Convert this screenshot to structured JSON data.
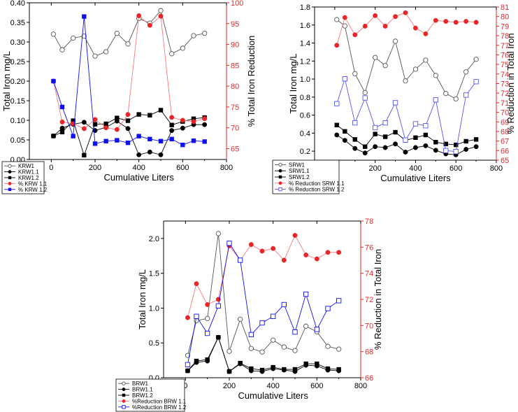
{
  "chart_data": [
    {
      "type": "line",
      "id": "krw",
      "xlabel": "Cumulative Liters",
      "ylabel": "Total Iron mg/L",
      "y2label": "% Total Iron Reduction",
      "xlim": [
        -100,
        800
      ],
      "ylim": [
        0,
        0.4
      ],
      "y2lim": [
        62.4,
        100
      ],
      "xticks": [
        0,
        200,
        400,
        600,
        800
      ],
      "yticks": [
        "0.00",
        "0.05",
        "0.10",
        "0.15",
        "0.20",
        "0.25",
        "0.30",
        "0.35",
        "0.40"
      ],
      "y2ticks": [
        65,
        70,
        75,
        80,
        85,
        90,
        95,
        100
      ],
      "grid": false,
      "legend_position": "bottom-left",
      "x": [
        10,
        50,
        100,
        150,
        200,
        250,
        300,
        350,
        400,
        450,
        500,
        550,
        600,
        650,
        700
      ],
      "series": [
        {
          "name": "KRW1",
          "axis": "left",
          "marker": "open-circle",
          "color": "#555555",
          "values": [
            0.32,
            0.28,
            0.31,
            0.315,
            0.264,
            0.275,
            0.322,
            0.295,
            0.36,
            0.348,
            0.38,
            0.27,
            0.284,
            0.316,
            0.322
          ]
        },
        {
          "name": "KRW1.1",
          "axis": "left",
          "marker": "filled-circle",
          "color": "#000000",
          "values": [
            0.06,
            0.08,
            0.09,
            0.095,
            0.074,
            0.082,
            0.098,
            0.079,
            0.012,
            0.019,
            0.012,
            0.074,
            0.08,
            0.089,
            0.089
          ]
        },
        {
          "name": "KRW1.2",
          "axis": "left",
          "marker": "filled-square",
          "color": "#000000",
          "values": [
            0.06,
            0.07,
            0.099,
            0.011,
            0.09,
            0.091,
            0.106,
            0.099,
            0.115,
            0.113,
            0.126,
            0.088,
            0.097,
            0.104,
            0.107
          ]
        },
        {
          "name": "% KRW 1.1",
          "axis": "right",
          "marker": "filled-circle",
          "color": "#e8262a",
          "values": [
            81.2,
            71.4,
            71.0,
            69.8,
            72.0,
            70.0,
            69.6,
            73.2,
            96.9,
            94.6,
            96.8,
            72.5,
            71.8,
            71.5,
            72.2
          ]
        },
        {
          "name": "% KRW 1.2",
          "axis": "right",
          "marker": "filled-square",
          "color": "#1010ee",
          "values": [
            81.2,
            75.0,
            68.0,
            96.7,
            66.2,
            66.8,
            67.0,
            66.4,
            68.0,
            67.3,
            66.8,
            67.3,
            65.9,
            66.9,
            66.7
          ]
        }
      ]
    },
    {
      "type": "line",
      "id": "srw",
      "xlabel": "Cumulative Liters",
      "ylabel": "Total Iron mg/L",
      "y2label": "% Reduction in Total Iron",
      "xlim": [
        -100,
        800
      ],
      "ylim": [
        0.1,
        1.8
      ],
      "y2lim": [
        65,
        81
      ],
      "xticks": [
        0,
        200,
        400,
        600,
        800
      ],
      "yticks": [
        "0.2",
        "0.4",
        "0.6",
        "0.8",
        "1.0",
        "1.2",
        "1.4",
        "1.6",
        "1.8"
      ],
      "y2ticks": [
        65,
        66,
        67,
        68,
        69,
        70,
        71,
        72,
        73,
        74,
        75,
        76,
        77,
        78,
        79,
        80,
        81
      ],
      "grid": false,
      "legend_position": "bottom-left",
      "x": [
        10,
        50,
        100,
        150,
        200,
        250,
        300,
        350,
        400,
        450,
        500,
        550,
        600,
        650,
        700
      ],
      "series": [
        {
          "name": "SRW1",
          "axis": "left",
          "marker": "open-circle",
          "color": "#555555",
          "values": [
            1.66,
            1.59,
            1.06,
            0.85,
            1.24,
            1.15,
            1.42,
            0.98,
            1.11,
            1.21,
            1.04,
            0.84,
            0.78,
            1.08,
            1.22
          ]
        },
        {
          "name": "SRW1.1",
          "axis": "left",
          "marker": "filled-circle",
          "color": "#000000",
          "values": [
            0.38,
            0.32,
            0.23,
            0.18,
            0.25,
            0.24,
            0.28,
            0.19,
            0.24,
            0.26,
            0.21,
            0.17,
            0.16,
            0.22,
            0.25
          ]
        },
        {
          "name": "SRW1.2",
          "axis": "left",
          "marker": "filled-square",
          "color": "#000000",
          "values": [
            0.49,
            0.42,
            0.33,
            0.25,
            0.39,
            0.36,
            0.41,
            0.32,
            0.35,
            0.38,
            0.3,
            0.28,
            0.27,
            0.31,
            0.33
          ]
        },
        {
          "name": "% Reduction SRW 1.1",
          "axis": "right",
          "marker": "filled-circle",
          "color": "#e8262a",
          "values": [
            77.0,
            79.9,
            78.1,
            79.0,
            80.1,
            79.0,
            80.0,
            80.4,
            78.8,
            78.2,
            79.6,
            79.5,
            79.4,
            79.5,
            79.4
          ]
        },
        {
          "name": "% Reduction SRW 1.2",
          "axis": "right",
          "marker": "open-square",
          "color": "#5555ee",
          "values": [
            70.9,
            73.5,
            68.9,
            71.5,
            68.4,
            68.9,
            71.0,
            67.1,
            68.8,
            68.6,
            71.3,
            66.0,
            65.9,
            71.8,
            73.2
          ]
        }
      ]
    },
    {
      "type": "line",
      "id": "brw",
      "xlabel": "Cumulative Liters",
      "ylabel": "Total Iron mg/L",
      "y2label": "% Reduction in Total Iron",
      "xlim": [
        -100,
        800
      ],
      "ylim": [
        0,
        2.25
      ],
      "y2lim": [
        66,
        78
      ],
      "xticks": [
        0,
        200,
        400,
        600,
        800
      ],
      "yticks": [
        "0.0",
        "0.5",
        "1.0",
        "1.5",
        "2.0"
      ],
      "y2ticks": [
        66,
        68,
        70,
        72,
        74,
        76,
        78
      ],
      "grid": false,
      "legend_position": "bottom-left",
      "x": [
        10,
        50,
        100,
        150,
        200,
        250,
        300,
        350,
        400,
        450,
        500,
        550,
        600,
        650,
        700
      ],
      "series": [
        {
          "name": "BRW1",
          "axis": "left",
          "marker": "open-circle",
          "color": "#555555",
          "values": [
            0.32,
            0.82,
            0.85,
            2.07,
            0.38,
            0.84,
            0.42,
            0.37,
            0.54,
            0.44,
            0.39,
            0.74,
            0.66,
            0.45,
            0.41
          ]
        },
        {
          "name": "BRW1.1",
          "axis": "left",
          "marker": "filled-circle",
          "color": "#000000",
          "values": [
            0.1,
            0.22,
            0.24,
            0.58,
            0.09,
            0.2,
            0.1,
            0.09,
            0.13,
            0.11,
            0.09,
            0.18,
            0.17,
            0.11,
            0.1
          ]
        },
        {
          "name": "BRW1.2",
          "axis": "left",
          "marker": "filled-square",
          "color": "#000000",
          "values": [
            0.1,
            0.24,
            0.26,
            0.58,
            0.09,
            0.21,
            0.13,
            0.11,
            0.15,
            0.12,
            0.12,
            0.2,
            0.2,
            0.13,
            0.12
          ]
        },
        {
          "name": "%Reduction BRW 1.1",
          "axis": "right",
          "marker": "filled-circle",
          "color": "#e8262a",
          "values": [
            70.6,
            73.2,
            71.6,
            72.0,
            76.1,
            75.0,
            76.2,
            75.7,
            75.9,
            75.0,
            76.9,
            75.4,
            75.1,
            75.6,
            75.6
          ]
        },
        {
          "name": "%Reduction BRW 1.2",
          "axis": "right",
          "marker": "open-square",
          "color": "#1010ee",
          "values": [
            67.0,
            70.7,
            69.4,
            71.5,
            76.3,
            75.0,
            69.3,
            70.2,
            70.7,
            71.6,
            69.5,
            72.4,
            69.7,
            71.3,
            71.9
          ]
        }
      ]
    }
  ]
}
